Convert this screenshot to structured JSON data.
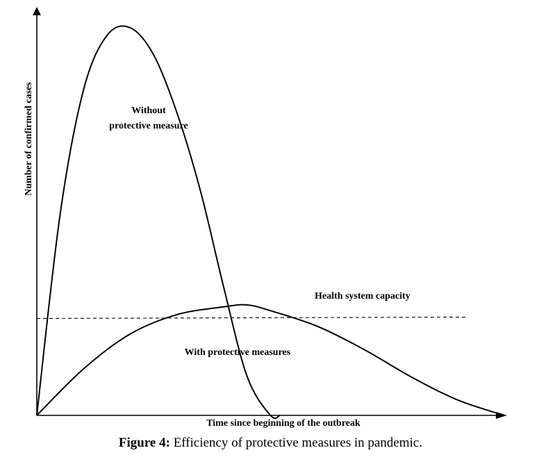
{
  "chart_data": {
    "type": "line",
    "title": "",
    "xlabel": "Time since beginning of the outbreak",
    "ylabel": "Number of confirmed cases",
    "xlim": [
      0,
      100
    ],
    "ylim": [
      0,
      100
    ],
    "grid": false,
    "series": [
      {
        "x": [
          0,
          5,
          10,
          15,
          20,
          25,
          30,
          35,
          40,
          45,
          50,
          52
        ],
        "y": [
          0,
          52,
          84,
          98,
          100,
          93,
          78,
          58,
          33,
          10,
          0,
          0
        ],
        "color": "#000000",
        "style": "solid"
      },
      {
        "x": [
          0,
          10,
          20,
          30,
          40,
          45,
          50,
          60,
          70,
          80,
          90,
          100
        ],
        "y": [
          0,
          12,
          21,
          26,
          28,
          28.5,
          27,
          23,
          17,
          10,
          4,
          0
        ],
        "color": "#000000",
        "style": "solid"
      }
    ],
    "threshold": {
      "label": "Health system capacity",
      "y": 25,
      "style": "dashed",
      "color": "#000000"
    },
    "annotations": [
      {
        "line1": "Without",
        "line2": "protective measure"
      },
      {
        "text": "With protective measures"
      }
    ]
  },
  "caption": {
    "label": "Figure 4:",
    "text": " Efficiency of protective measures in pandemic."
  }
}
